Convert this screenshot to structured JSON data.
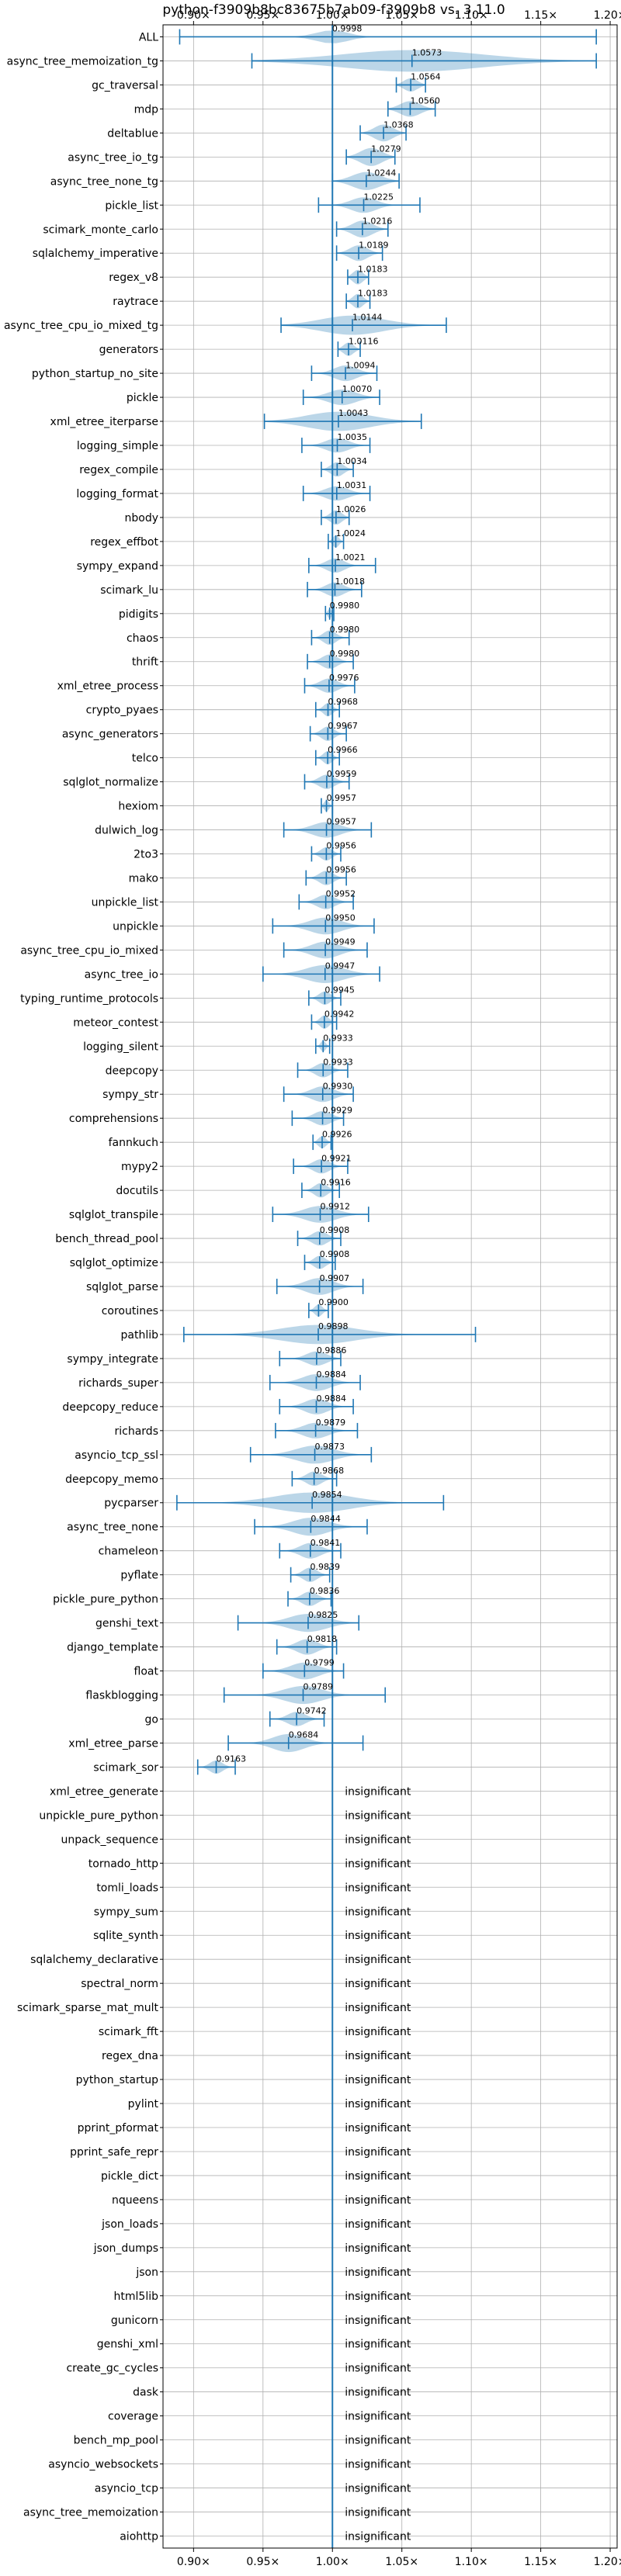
{
  "chart_data": {
    "type": "violin",
    "title": "python-f3909b8bc83675b7ab09-f3909b8 vs. 3.11.0",
    "xlim": [
      0.878,
      1.205
    ],
    "x_ticks": [
      0.9,
      0.95,
      1.0,
      1.05,
      1.1,
      1.15,
      1.2
    ],
    "x_tick_labels": [
      "0.90×",
      "0.95×",
      "1.00×",
      "1.05×",
      "1.10×",
      "1.15×",
      "1.20×"
    ],
    "reference_x": 1.0,
    "grid": true,
    "insignificant_label": "insignificant",
    "benchmarks": [
      {
        "name": "ALL",
        "label": "0.9998",
        "mean": 0.9998,
        "lo": 0.89,
        "hi": 1.19,
        "spread": 0.025,
        "height": 0.55
      },
      {
        "name": "async_tree_memoization_tg",
        "label": "1.0573",
        "mean": 1.0573,
        "lo": 0.942,
        "hi": 1.19,
        "spread": 0.11,
        "height": 0.9
      },
      {
        "name": "gc_traversal",
        "label": "1.0564",
        "mean": 1.0564,
        "lo": 1.046,
        "hi": 1.067,
        "spread": 0.011,
        "height": 0.55
      },
      {
        "name": "mdp",
        "label": "1.0560",
        "mean": 1.056,
        "lo": 1.04,
        "hi": 1.074,
        "spread": 0.016,
        "height": 0.65
      },
      {
        "name": "deltablue",
        "label": "1.0368",
        "mean": 1.0368,
        "lo": 1.02,
        "hi": 1.053,
        "spread": 0.015,
        "height": 0.7
      },
      {
        "name": "async_tree_io_tg",
        "label": "1.0279",
        "mean": 1.0279,
        "lo": 1.01,
        "hi": 1.045,
        "spread": 0.017,
        "height": 0.75
      },
      {
        "name": "async_tree_none_tg",
        "label": "1.0244",
        "mean": 1.0244,
        "lo": 1.0,
        "hi": 1.048,
        "spread": 0.022,
        "height": 0.75
      },
      {
        "name": "pickle_list",
        "label": "1.0225",
        "mean": 1.0225,
        "lo": 0.99,
        "hi": 1.063,
        "spread": 0.02,
        "height": 0.65
      },
      {
        "name": "scimark_monte_carlo",
        "label": "1.0216",
        "mean": 1.0216,
        "lo": 1.003,
        "hi": 1.04,
        "spread": 0.016,
        "height": 0.7
      },
      {
        "name": "sqlalchemy_imperative",
        "label": "1.0189",
        "mean": 1.0189,
        "lo": 1.003,
        "hi": 1.036,
        "spread": 0.014,
        "height": 0.65
      },
      {
        "name": "regex_v8",
        "label": "1.0183",
        "mean": 1.0183,
        "lo": 1.011,
        "hi": 1.026,
        "spread": 0.008,
        "height": 0.6
      },
      {
        "name": "raytrace",
        "label": "1.0183",
        "mean": 1.0183,
        "lo": 1.01,
        "hi": 1.027,
        "spread": 0.008,
        "height": 0.6
      },
      {
        "name": "async_tree_cpu_io_mixed_tg",
        "label": "1.0144",
        "mean": 1.0144,
        "lo": 0.963,
        "hi": 1.082,
        "spread": 0.05,
        "height": 0.8
      },
      {
        "name": "generators",
        "label": "1.0116",
        "mean": 1.0116,
        "lo": 1.004,
        "hi": 1.02,
        "spread": 0.008,
        "height": 0.55
      },
      {
        "name": "python_startup_no_site",
        "label": "1.0094",
        "mean": 1.0094,
        "lo": 0.985,
        "hi": 1.032,
        "spread": 0.018,
        "height": 0.65
      },
      {
        "name": "pickle",
        "label": "1.0070",
        "mean": 1.007,
        "lo": 0.979,
        "hi": 1.034,
        "spread": 0.022,
        "height": 0.65
      },
      {
        "name": "xml_etree_iterparse",
        "label": "1.0043",
        "mean": 1.0043,
        "lo": 0.951,
        "hi": 1.064,
        "spread": 0.05,
        "height": 0.8
      },
      {
        "name": "logging_simple",
        "label": "1.0035",
        "mean": 1.0035,
        "lo": 0.978,
        "hi": 1.027,
        "spread": 0.018,
        "height": 0.6
      },
      {
        "name": "regex_compile",
        "label": "1.0034",
        "mean": 1.0034,
        "lo": 0.992,
        "hi": 1.015,
        "spread": 0.01,
        "height": 0.6
      },
      {
        "name": "logging_format",
        "label": "1.0031",
        "mean": 1.0031,
        "lo": 0.979,
        "hi": 1.027,
        "spread": 0.018,
        "height": 0.6
      },
      {
        "name": "nbody",
        "label": "1.0026",
        "mean": 1.0026,
        "lo": 0.992,
        "hi": 1.012,
        "spread": 0.009,
        "height": 0.6
      },
      {
        "name": "regex_effbot",
        "label": "1.0024",
        "mean": 1.0024,
        "lo": 0.997,
        "hi": 1.008,
        "spread": 0.005,
        "height": 0.5
      },
      {
        "name": "sympy_expand",
        "label": "1.0021",
        "mean": 1.0021,
        "lo": 0.983,
        "hi": 1.031,
        "spread": 0.014,
        "height": 0.6
      },
      {
        "name": "scimark_lu",
        "label": "1.0018",
        "mean": 1.0018,
        "lo": 0.982,
        "hi": 1.021,
        "spread": 0.014,
        "height": 0.6
      },
      {
        "name": "pidigits",
        "label": "0.9980",
        "mean": 0.998,
        "lo": 0.995,
        "hi": 1.001,
        "spread": 0.003,
        "height": 0.4
      },
      {
        "name": "chaos",
        "label": "0.9980",
        "mean": 0.998,
        "lo": 0.985,
        "hi": 1.012,
        "spread": 0.01,
        "height": 0.6
      },
      {
        "name": "thrift",
        "label": "0.9980",
        "mean": 0.998,
        "lo": 0.982,
        "hi": 1.015,
        "spread": 0.012,
        "height": 0.6
      },
      {
        "name": "xml_etree_process",
        "label": "0.9976",
        "mean": 0.9976,
        "lo": 0.98,
        "hi": 1.016,
        "spread": 0.014,
        "height": 0.6
      },
      {
        "name": "crypto_pyaes",
        "label": "0.9968",
        "mean": 0.9968,
        "lo": 0.988,
        "hi": 1.005,
        "spread": 0.007,
        "height": 0.55
      },
      {
        "name": "async_generators",
        "label": "0.9967",
        "mean": 0.9967,
        "lo": 0.984,
        "hi": 1.01,
        "spread": 0.01,
        "height": 0.6
      },
      {
        "name": "telco",
        "label": "0.9966",
        "mean": 0.9966,
        "lo": 0.988,
        "hi": 1.005,
        "spread": 0.007,
        "height": 0.55
      },
      {
        "name": "sqlglot_normalize",
        "label": "0.9959",
        "mean": 0.9959,
        "lo": 0.98,
        "hi": 1.012,
        "spread": 0.012,
        "height": 0.6
      },
      {
        "name": "hexiom",
        "label": "0.9957",
        "mean": 0.9957,
        "lo": 0.992,
        "hi": 1.0,
        "spread": 0.004,
        "height": 0.45
      },
      {
        "name": "dulwich_log",
        "label": "0.9957",
        "mean": 0.9957,
        "lo": 0.965,
        "hi": 1.028,
        "spread": 0.022,
        "height": 0.65
      },
      {
        "name": "2to3",
        "label": "0.9956",
        "mean": 0.9956,
        "lo": 0.985,
        "hi": 1.006,
        "spread": 0.009,
        "height": 0.55
      },
      {
        "name": "mako",
        "label": "0.9956",
        "mean": 0.9956,
        "lo": 0.981,
        "hi": 1.01,
        "spread": 0.011,
        "height": 0.6
      },
      {
        "name": "unpickle_list",
        "label": "0.9952",
        "mean": 0.9952,
        "lo": 0.976,
        "hi": 1.015,
        "spread": 0.014,
        "height": 0.6
      },
      {
        "name": "unpickle",
        "label": "0.9950",
        "mean": 0.995,
        "lo": 0.957,
        "hi": 1.03,
        "spread": 0.025,
        "height": 0.7
      },
      {
        "name": "async_tree_cpu_io_mixed",
        "label": "0.9949",
        "mean": 0.9949,
        "lo": 0.965,
        "hi": 1.025,
        "spread": 0.022,
        "height": 0.7
      },
      {
        "name": "async_tree_io",
        "label": "0.9947",
        "mean": 0.9947,
        "lo": 0.95,
        "hi": 1.034,
        "spread": 0.03,
        "height": 0.75
      },
      {
        "name": "typing_runtime_protocols",
        "label": "0.9945",
        "mean": 0.9945,
        "lo": 0.983,
        "hi": 1.006,
        "spread": 0.009,
        "height": 0.55
      },
      {
        "name": "meteor_contest",
        "label": "0.9942",
        "mean": 0.9942,
        "lo": 0.985,
        "hi": 1.003,
        "spread": 0.007,
        "height": 0.55
      },
      {
        "name": "logging_silent",
        "label": "0.9933",
        "mean": 0.9933,
        "lo": 0.988,
        "hi": 0.998,
        "spread": 0.004,
        "height": 0.45
      },
      {
        "name": "deepcopy",
        "label": "0.9933",
        "mean": 0.9933,
        "lo": 0.975,
        "hi": 1.011,
        "spread": 0.012,
        "height": 0.6
      },
      {
        "name": "sympy_str",
        "label": "0.9930",
        "mean": 0.993,
        "lo": 0.965,
        "hi": 1.015,
        "spread": 0.018,
        "height": 0.65
      },
      {
        "name": "comprehensions",
        "label": "0.9929",
        "mean": 0.9929,
        "lo": 0.971,
        "hi": 1.008,
        "spread": 0.014,
        "height": 0.6
      },
      {
        "name": "fannkuch",
        "label": "0.9926",
        "mean": 0.9926,
        "lo": 0.986,
        "hi": 0.999,
        "spread": 0.006,
        "height": 0.5
      },
      {
        "name": "mypy2",
        "label": "0.9921",
        "mean": 0.9921,
        "lo": 0.972,
        "hi": 1.011,
        "spread": 0.013,
        "height": 0.6
      },
      {
        "name": "docutils",
        "label": "0.9916",
        "mean": 0.9916,
        "lo": 0.978,
        "hi": 1.005,
        "spread": 0.01,
        "height": 0.6
      },
      {
        "name": "sqlglot_transpile",
        "label": "0.9912",
        "mean": 0.9912,
        "lo": 0.957,
        "hi": 1.026,
        "spread": 0.025,
        "height": 0.7
      },
      {
        "name": "bench_thread_pool",
        "label": "0.9908",
        "mean": 0.9908,
        "lo": 0.975,
        "hi": 1.006,
        "spread": 0.012,
        "height": 0.6
      },
      {
        "name": "sqlglot_optimize",
        "label": "0.9908",
        "mean": 0.9908,
        "lo": 0.98,
        "hi": 1.002,
        "spread": 0.009,
        "height": 0.55
      },
      {
        "name": "sqlglot_parse",
        "label": "0.9907",
        "mean": 0.9907,
        "lo": 0.96,
        "hi": 1.022,
        "spread": 0.022,
        "height": 0.7
      },
      {
        "name": "coroutines",
        "label": "0.9900",
        "mean": 0.99,
        "lo": 0.983,
        "hi": 0.997,
        "spread": 0.006,
        "height": 0.5
      },
      {
        "name": "pathlib",
        "label": "0.9898",
        "mean": 0.9898,
        "lo": 0.893,
        "hi": 1.103,
        "spread": 0.06,
        "height": 0.8
      },
      {
        "name": "sympy_integrate",
        "label": "0.9886",
        "mean": 0.9886,
        "lo": 0.962,
        "hi": 1.006,
        "spread": 0.016,
        "height": 0.6
      },
      {
        "name": "richards_super",
        "label": "0.9884",
        "mean": 0.9884,
        "lo": 0.955,
        "hi": 1.02,
        "spread": 0.022,
        "height": 0.7
      },
      {
        "name": "deepcopy_reduce",
        "label": "0.9884",
        "mean": 0.9884,
        "lo": 0.962,
        "hi": 1.015,
        "spread": 0.018,
        "height": 0.65
      },
      {
        "name": "richards",
        "label": "0.9879",
        "mean": 0.9879,
        "lo": 0.959,
        "hi": 1.018,
        "spread": 0.02,
        "height": 0.65
      },
      {
        "name": "asyncio_tcp_ssl",
        "label": "0.9873",
        "mean": 0.9873,
        "lo": 0.941,
        "hi": 1.028,
        "spread": 0.03,
        "height": 0.75
      },
      {
        "name": "deepcopy_memo",
        "label": "0.9868",
        "mean": 0.9868,
        "lo": 0.971,
        "hi": 1.003,
        "spread": 0.012,
        "height": 0.6
      },
      {
        "name": "pycparser",
        "label": "0.9854",
        "mean": 0.9854,
        "lo": 0.888,
        "hi": 1.08,
        "spread": 0.06,
        "height": 0.85
      },
      {
        "name": "async_tree_none",
        "label": "0.9844",
        "mean": 0.9844,
        "lo": 0.944,
        "hi": 1.025,
        "spread": 0.028,
        "height": 0.75
      },
      {
        "name": "chameleon",
        "label": "0.9841",
        "mean": 0.9841,
        "lo": 0.962,
        "hi": 1.006,
        "spread": 0.016,
        "height": 0.65
      },
      {
        "name": "pyflate",
        "label": "0.9839",
        "mean": 0.9839,
        "lo": 0.97,
        "hi": 0.998,
        "spread": 0.011,
        "height": 0.6
      },
      {
        "name": "pickle_pure_python",
        "label": "0.9836",
        "mean": 0.9836,
        "lo": 0.968,
        "hi": 0.999,
        "spread": 0.012,
        "height": 0.6
      },
      {
        "name": "genshi_text",
        "label": "0.9825",
        "mean": 0.9825,
        "lo": 0.932,
        "hi": 1.019,
        "spread": 0.03,
        "height": 0.75
      },
      {
        "name": "django_template",
        "label": "0.9818",
        "mean": 0.9818,
        "lo": 0.96,
        "hi": 1.003,
        "spread": 0.016,
        "height": 0.65
      },
      {
        "name": "float",
        "label": "0.9799",
        "mean": 0.9799,
        "lo": 0.95,
        "hi": 1.008,
        "spread": 0.022,
        "height": 0.7
      },
      {
        "name": "flaskblogging",
        "label": "0.9789",
        "mean": 0.9789,
        "lo": 0.922,
        "hi": 1.038,
        "spread": 0.03,
        "height": 0.75
      },
      {
        "name": "go",
        "label": "0.9742",
        "mean": 0.9742,
        "lo": 0.955,
        "hi": 0.994,
        "spread": 0.014,
        "height": 0.6
      },
      {
        "name": "xml_etree_parse",
        "label": "0.9684",
        "mean": 0.9684,
        "lo": 0.925,
        "hi": 1.022,
        "spread": 0.025,
        "height": 0.75
      },
      {
        "name": "scimark_sor",
        "label": "0.9163",
        "mean": 0.9163,
        "lo": 0.903,
        "hi": 0.93,
        "spread": 0.01,
        "height": 0.55
      },
      {
        "name": "xml_etree_generate",
        "insignificant": true
      },
      {
        "name": "unpickle_pure_python",
        "insignificant": true
      },
      {
        "name": "unpack_sequence",
        "insignificant": true
      },
      {
        "name": "tornado_http",
        "insignificant": true
      },
      {
        "name": "tomli_loads",
        "insignificant": true
      },
      {
        "name": "sympy_sum",
        "insignificant": true
      },
      {
        "name": "sqlite_synth",
        "insignificant": true
      },
      {
        "name": "sqlalchemy_declarative",
        "insignificant": true
      },
      {
        "name": "spectral_norm",
        "insignificant": true
      },
      {
        "name": "scimark_sparse_mat_mult",
        "insignificant": true
      },
      {
        "name": "scimark_fft",
        "insignificant": true
      },
      {
        "name": "regex_dna",
        "insignificant": true
      },
      {
        "name": "python_startup",
        "insignificant": true
      },
      {
        "name": "pylint",
        "insignificant": true
      },
      {
        "name": "pprint_pformat",
        "insignificant": true
      },
      {
        "name": "pprint_safe_repr",
        "insignificant": true
      },
      {
        "name": "pickle_dict",
        "insignificant": true
      },
      {
        "name": "nqueens",
        "insignificant": true
      },
      {
        "name": "json_loads",
        "insignificant": true
      },
      {
        "name": "json_dumps",
        "insignificant": true
      },
      {
        "name": "json",
        "insignificant": true
      },
      {
        "name": "html5lib",
        "insignificant": true
      },
      {
        "name": "gunicorn",
        "insignificant": true
      },
      {
        "name": "genshi_xml",
        "insignificant": true
      },
      {
        "name": "create_gc_cycles",
        "insignificant": true
      },
      {
        "name": "dask",
        "insignificant": true
      },
      {
        "name": "coverage",
        "insignificant": true
      },
      {
        "name": "bench_mp_pool",
        "insignificant": true
      },
      {
        "name": "asyncio_websockets",
        "insignificant": true
      },
      {
        "name": "asyncio_tcp",
        "insignificant": true
      },
      {
        "name": "async_tree_memoization",
        "insignificant": true
      },
      {
        "name": "aiohttp",
        "insignificant": true
      }
    ]
  }
}
